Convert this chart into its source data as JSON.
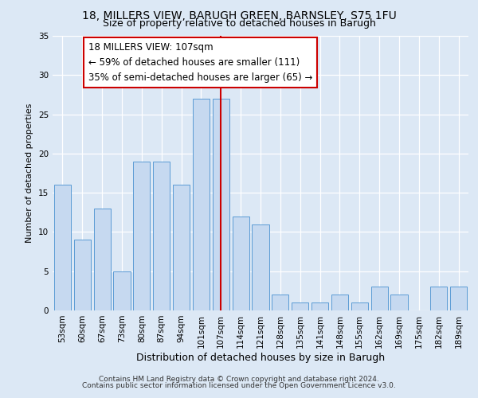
{
  "title1": "18, MILLERS VIEW, BARUGH GREEN, BARNSLEY, S75 1FU",
  "title2": "Size of property relative to detached houses in Barugh",
  "xlabel": "Distribution of detached houses by size in Barugh",
  "ylabel": "Number of detached properties",
  "footer1": "Contains HM Land Registry data © Crown copyright and database right 2024.",
  "footer2": "Contains public sector information licensed under the Open Government Licence v3.0.",
  "categories": [
    "53sqm",
    "60sqm",
    "67sqm",
    "73sqm",
    "80sqm",
    "87sqm",
    "94sqm",
    "101sqm",
    "107sqm",
    "114sqm",
    "121sqm",
    "128sqm",
    "135sqm",
    "141sqm",
    "148sqm",
    "155sqm",
    "162sqm",
    "169sqm",
    "175sqm",
    "182sqm",
    "189sqm"
  ],
  "values": [
    16,
    9,
    13,
    5,
    19,
    19,
    16,
    27,
    27,
    12,
    11,
    2,
    1,
    1,
    2,
    1,
    3,
    2,
    0,
    3,
    3
  ],
  "bar_color": "#c6d9f0",
  "bar_edge_color": "#5b9bd5",
  "highlight_index": 8,
  "highlight_line_color": "#cc0000",
  "annotation_text": "18 MILLERS VIEW: 107sqm\n← 59% of detached houses are smaller (111)\n35% of semi-detached houses are larger (65) →",
  "annotation_box_color": "#ffffff",
  "annotation_box_edge_color": "#cc0000",
  "ylim": [
    0,
    35
  ],
  "yticks": [
    0,
    5,
    10,
    15,
    20,
    25,
    30,
    35
  ],
  "background_color": "#dce8f5",
  "plot_bg_color": "#dce8f5",
  "grid_color": "#ffffff",
  "title1_fontsize": 10,
  "title2_fontsize": 9,
  "xlabel_fontsize": 9,
  "ylabel_fontsize": 8,
  "tick_fontsize": 7.5,
  "annotation_fontsize": 8.5,
  "footer_fontsize": 6.5
}
